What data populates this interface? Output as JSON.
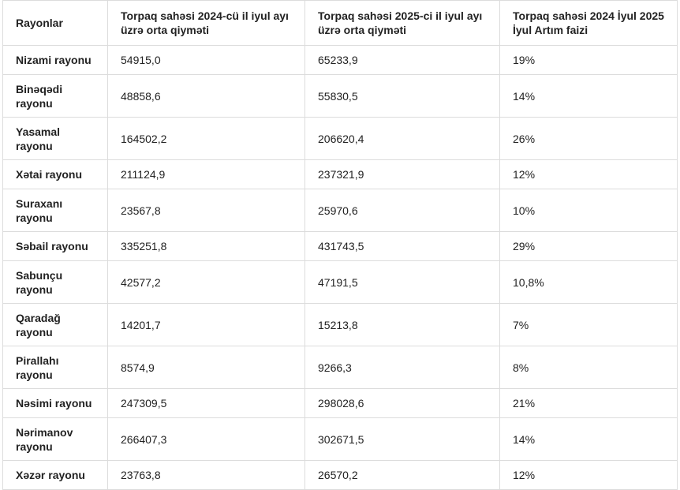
{
  "table": {
    "headers": [
      "Rayonlar",
      "Torpaq sahəsi 2024-cü il iyul ayı üzrə orta qiyməti",
      "Torpaq sahəsi 2025-ci il iyul ayı üzrə orta qiyməti",
      "Torpaq sahəsi 2024 İyul 2025 İyul Artım faizi"
    ],
    "rows": [
      [
        "Nizami rayonu",
        "54915,0",
        "65233,9",
        "19%"
      ],
      [
        "Binəqədi rayonu",
        "48858,6",
        "55830,5",
        "14%"
      ],
      [
        "Yasamal rayonu",
        "164502,2",
        "206620,4",
        "26%"
      ],
      [
        "Xətai rayonu",
        "211124,9",
        "237321,9",
        "12%"
      ],
      [
        "Suraxanı rayonu",
        "23567,8",
        "25970,6",
        "10%"
      ],
      [
        "Səbail rayonu",
        "335251,8",
        "431743,5",
        "29%"
      ],
      [
        "Sabunçu rayonu",
        "42577,2",
        "47191,5",
        "10,8%"
      ],
      [
        "Qaradağ rayonu",
        "14201,7",
        "15213,8",
        "7%"
      ],
      [
        "Pirallahı rayonu",
        "8574,9",
        "9266,3",
        "8%"
      ],
      [
        "Nəsimi rayonu",
        "247309,5",
        "298028,6",
        "21%"
      ],
      [
        "Nərimanov rayonu",
        "266407,3",
        "302671,5",
        "14%"
      ],
      [
        "Xəzər rayonu",
        "23763,8",
        "26570,2",
        "12%"
      ]
    ]
  }
}
